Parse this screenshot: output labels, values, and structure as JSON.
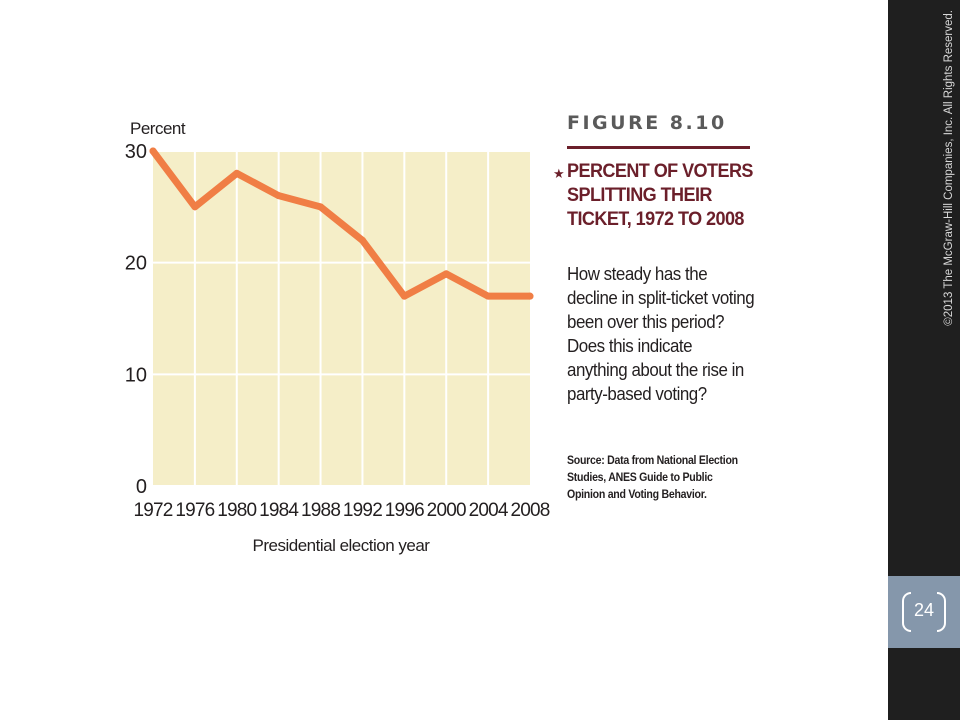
{
  "figure": {
    "label": "FIGURE 8.10",
    "title": "PERCENT OF VOTERS SPLITTING THEIR TICKET, 1972 TO 2008",
    "question": "How steady has the decline in split-ticket voting been over this period? Does this indicate anything about the rise in party-based voting?",
    "source": "Source: Data from National Election Studies, ANES Guide to Public Opinion and Voting Behavior."
  },
  "sidebar": {
    "copyright": "©2013 The McGraw-Hill Companies, Inc. All Rights Reserved.",
    "page_number": "24"
  },
  "colors": {
    "plot_background": "#f5eec8",
    "line": "#f07e45",
    "title_accent": "#6b1f2a",
    "sidebar": "#1f1f1f",
    "page_box": "#8597ab"
  },
  "chart_data": {
    "type": "line",
    "x": [
      1972,
      1976,
      1980,
      1984,
      1988,
      1992,
      1996,
      2000,
      2004,
      2008
    ],
    "x_tick_labels": [
      "1972",
      "1976",
      "1980",
      "1984",
      "1988",
      "1992",
      "1996",
      "2000",
      "2004",
      "2008"
    ],
    "series": [
      {
        "values": [
          30,
          25,
          28,
          26,
          25,
          22,
          17,
          19,
          17,
          17
        ]
      }
    ],
    "ylabel": "Percent",
    "xlabel": "Presidential election year",
    "ylim": [
      0,
      30
    ],
    "y_ticks": [
      0,
      10,
      20,
      30
    ],
    "grid": true,
    "legend": "none"
  }
}
